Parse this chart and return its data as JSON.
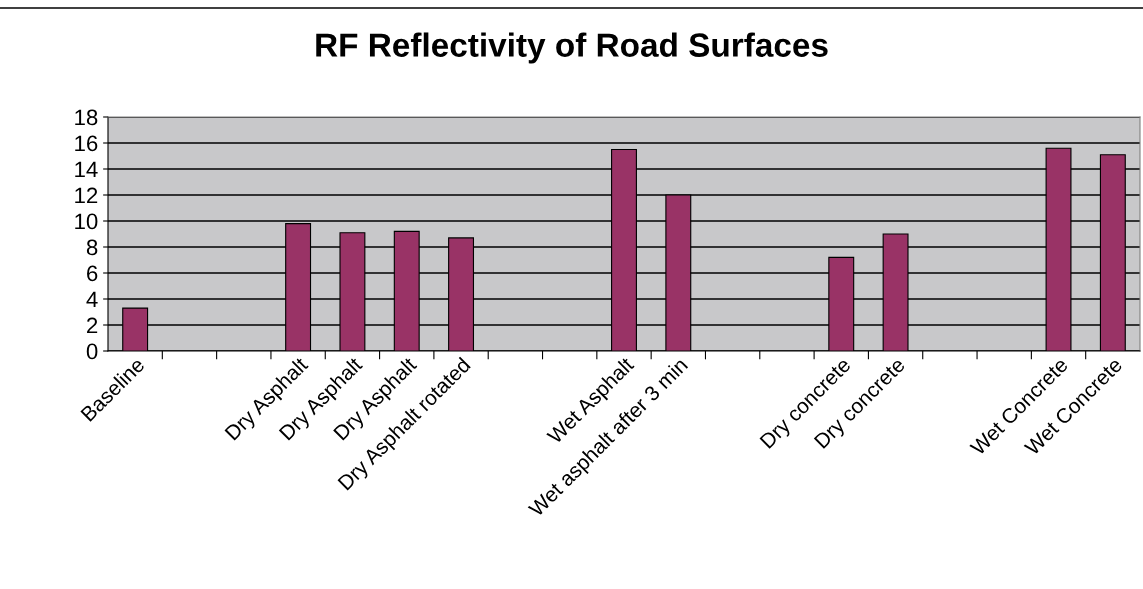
{
  "chart_data": {
    "type": "bar",
    "title": "RF Reflectivity of Road Surfaces",
    "categories": [
      "Baseline",
      null,
      null,
      "Dry Asphalt",
      "Dry Asphalt",
      "Dry Asphalt",
      "Dry Asphalt rotated",
      null,
      null,
      "Wet Asphalt",
      "Wet asphalt after 3 min",
      null,
      null,
      "Dry concrete",
      "Dry concrete",
      null,
      null,
      "Wet Concrete",
      "Wet Concrete"
    ],
    "values": [
      3.3,
      null,
      null,
      9.8,
      9.1,
      9.2,
      8.7,
      null,
      null,
      15.5,
      12.0,
      null,
      null,
      7.2,
      9.0,
      null,
      null,
      15.6,
      15.1
    ],
    "color": "#993366",
    "ylim": [
      0,
      18
    ],
    "yticks": [
      0,
      2,
      4,
      6,
      8,
      10,
      12,
      14,
      16,
      18
    ],
    "grid": "y",
    "legend": false
  }
}
